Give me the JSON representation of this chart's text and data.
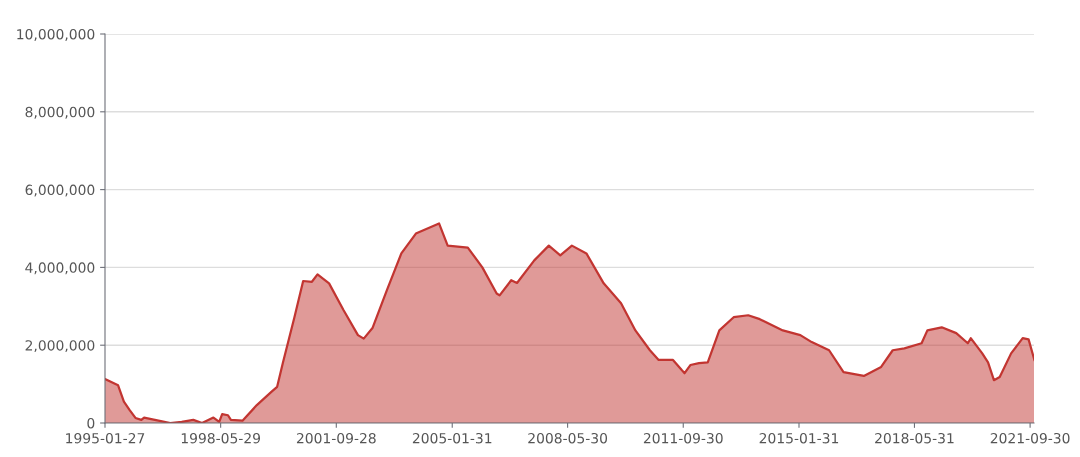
{
  "chart_data": {
    "type": "area",
    "x": [
      "1995-01-27",
      "1995-06",
      "1995-08",
      "1995-10",
      "1995-12",
      "1996-02",
      "1996-03",
      "1996-10",
      "1996-12",
      "1997-04",
      "1997-08",
      "1997-11",
      "1998-03",
      "1998-05",
      "1998-06",
      "1998-08",
      "1998-09",
      "1999-01",
      "1999-06",
      "1999-11",
      "2000-01",
      "2000-03",
      "2000-07",
      "2000-10",
      "2001-01",
      "2001-03",
      "2001-07",
      "2001-12",
      "2002-05",
      "2002-07",
      "2002-10",
      "2003-03",
      "2003-08",
      "2004-01",
      "2004-09",
      "2004-12",
      "2005-07",
      "2005-12",
      "2006-05",
      "2006-06",
      "2006-10",
      "2006-12",
      "2007-06",
      "2007-11",
      "2008-03",
      "2008-07",
      "2008-12",
      "2009-06",
      "2009-12",
      "2010-05",
      "2010-10",
      "2011-01",
      "2011-06",
      "2011-09",
      "2011-10",
      "2011-12",
      "2012-03",
      "2012-06",
      "2012-10",
      "2013-03",
      "2013-08",
      "2013-12",
      "2014-08",
      "2015-02",
      "2015-06",
      "2015-12",
      "2016-05",
      "2016-12",
      "2017-06",
      "2017-10",
      "2018-02",
      "2018-08",
      "2018-10",
      "2019-03",
      "2019-08",
      "2019-12",
      "2020-01",
      "2020-05",
      "2020-07",
      "2020-09",
      "2020-11",
      "2021-03",
      "2021-07",
      "2021-09",
      "2021-11"
    ],
    "series": [
      {
        "color": "#c23531",
        "values": [
          1130000,
          970000,
          550000,
          330000,
          130000,
          80000,
          140000,
          30000,
          0,
          30000,
          80000,
          0,
          140000,
          30000,
          230000,
          200000,
          80000,
          60000,
          460000,
          800000,
          930000,
          1540000,
          2720000,
          3650000,
          3630000,
          3820000,
          3590000,
          2900000,
          2260000,
          2170000,
          2440000,
          3410000,
          4360000,
          4870000,
          5130000,
          4560000,
          4510000,
          4000000,
          3330000,
          3280000,
          3670000,
          3600000,
          4180000,
          4560000,
          4310000,
          4560000,
          4360000,
          3590000,
          3080000,
          2380000,
          1870000,
          1620000,
          1620000,
          1360000,
          1280000,
          1490000,
          1540000,
          1560000,
          2380000,
          2720000,
          2770000,
          2670000,
          2380000,
          2260000,
          2080000,
          1870000,
          1310000,
          1210000,
          1440000,
          1870000,
          1920000,
          2050000,
          2380000,
          2460000,
          2310000,
          2050000,
          2180000,
          1790000,
          1560000,
          1100000,
          1180000,
          1790000,
          2180000,
          2150000,
          1620000
        ]
      }
    ],
    "xlim": [
      "1995-01-27",
      "2021-11-10"
    ],
    "xticks": [
      {
        "value": "1995-01-27",
        "label": "1995-01-27"
      },
      {
        "value": "1998-05-29",
        "label": "1998-05-29"
      },
      {
        "value": "2001-09-28",
        "label": "2001-09-28"
      },
      {
        "value": "2005-01-31",
        "label": "2005-01-31"
      },
      {
        "value": "2008-05-30",
        "label": "2008-05-30"
      },
      {
        "value": "2011-09-30",
        "label": "2011-09-30"
      },
      {
        "value": "2015-01-31",
        "label": "2015-01-31"
      },
      {
        "value": "2018-05-31",
        "label": "2018-05-31"
      },
      {
        "value": "2021-09-30",
        "label": "2021-09-30"
      }
    ],
    "ylim": [
      0,
      10000000
    ],
    "yticks": [
      {
        "value": 0,
        "label": "0"
      },
      {
        "value": 2000000,
        "label": "2,000,000"
      },
      {
        "value": 4000000,
        "label": "4,000,000"
      },
      {
        "value": 6000000,
        "label": "6,000,000"
      },
      {
        "value": 8000000,
        "label": "8,000,000"
      },
      {
        "value": 10000000,
        "label": "10,000,000"
      }
    ],
    "grid": "y"
  }
}
